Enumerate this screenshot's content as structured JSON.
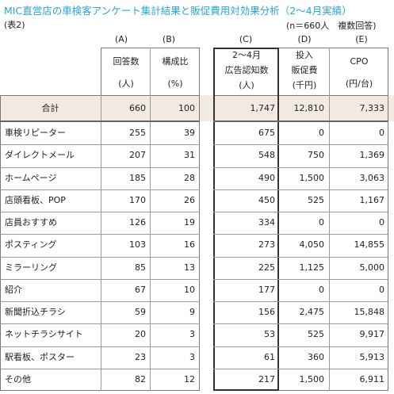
{
  "title": "MIC直営店の車検客アンケート集計結果と販促費用対効果分析（2～4月実績）",
  "table_no": "(表2)",
  "note": "(n＝660人　複数回答)",
  "columns": [
    {
      "letter": "(A)",
      "lines": [
        "回答数",
        "(人)"
      ]
    },
    {
      "letter": "(B)",
      "lines": [
        "構成比",
        "(%)"
      ]
    },
    {
      "letter": "(C)",
      "lines": [
        "2～4月",
        "広告認知数",
        "(人)"
      ]
    },
    {
      "letter": "(D)",
      "lines": [
        "投入",
        "販促費",
        "(千円)"
      ]
    },
    {
      "letter": "(E)",
      "lines": [
        "CPO",
        "(円/台)"
      ]
    }
  ],
  "total": {
    "label": "合計",
    "values": [
      "660",
      "100",
      "1,747",
      "12,810",
      "7,333"
    ]
  },
  "rows": [
    {
      "label": "車検リピーター",
      "values": [
        "255",
        "39",
        "675",
        "0",
        "0"
      ]
    },
    {
      "label": "ダイレクトメール",
      "values": [
        "207",
        "31",
        "548",
        "750",
        "1,369"
      ]
    },
    {
      "label": "ホームページ",
      "values": [
        "185",
        "28",
        "490",
        "1,500",
        "3,063"
      ]
    },
    {
      "label": "店頭看板、POP",
      "values": [
        "170",
        "26",
        "450",
        "525",
        "1,167"
      ]
    },
    {
      "label": "店員おすすめ",
      "values": [
        "126",
        "19",
        "334",
        "0",
        "0"
      ]
    },
    {
      "label": "ポスティング",
      "values": [
        "103",
        "16",
        "273",
        "4,050",
        "14,855"
      ]
    },
    {
      "label": "ミラーリング",
      "values": [
        "85",
        "13",
        "225",
        "1,125",
        "5,000"
      ]
    },
    {
      "label": "紹介",
      "values": [
        "67",
        "10",
        "177",
        "0",
        "0"
      ]
    },
    {
      "label": "新聞折込チラシ",
      "values": [
        "59",
        "9",
        "156",
        "2,475",
        "15,848"
      ]
    },
    {
      "label": "ネットチラシサイト",
      "values": [
        "20",
        "3",
        "53",
        "525",
        "9,917"
      ]
    },
    {
      "label": "駅看板、ポスター",
      "values": [
        "23",
        "3",
        "61",
        "360",
        "5,913"
      ]
    },
    {
      "label": "その他",
      "values": [
        "82",
        "12",
        "217",
        "1,500",
        "6,911"
      ]
    }
  ]
}
